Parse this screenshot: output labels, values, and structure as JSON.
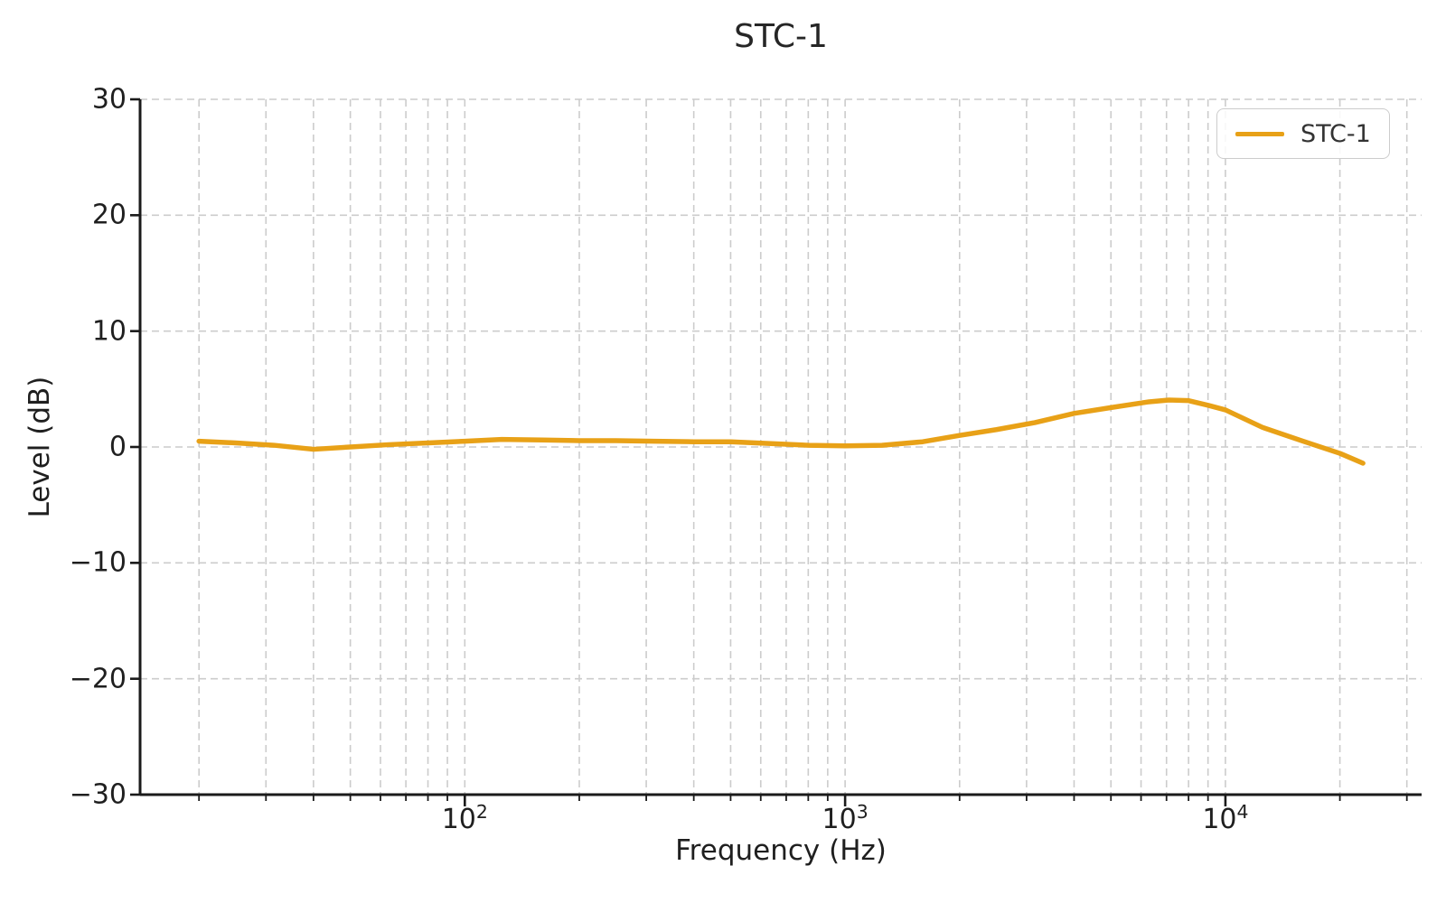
{
  "chart_data": {
    "type": "line",
    "title": "STC-1",
    "xlabel": "Frequency (Hz)",
    "ylabel": "Level (dB)",
    "x_scale": "log",
    "xlim": [
      14,
      32800
    ],
    "ylim": [
      -30,
      30
    ],
    "y_ticks": [
      30,
      20,
      10,
      0,
      -10,
      -20,
      -30
    ],
    "x_major_ticks": [
      {
        "value": 100,
        "base": "10",
        "exponent": "2"
      },
      {
        "value": 1000,
        "base": "10",
        "exponent": "3"
      },
      {
        "value": 10000,
        "base": "10",
        "exponent": "4"
      }
    ],
    "grid": {
      "show": true,
      "style": "dashed"
    },
    "legend": {
      "position": "upper right",
      "entries": [
        {
          "label": "STC-1",
          "color": "#E8A117"
        }
      ]
    },
    "series": [
      {
        "name": "STC-1",
        "color": "#E8A117",
        "points": [
          [
            20,
            0.5
          ],
          [
            25,
            0.35
          ],
          [
            31.5,
            0.15
          ],
          [
            40,
            -0.2
          ],
          [
            50,
            0.0
          ],
          [
            63,
            0.2
          ],
          [
            80,
            0.35
          ],
          [
            100,
            0.5
          ],
          [
            125,
            0.65
          ],
          [
            160,
            0.6
          ],
          [
            200,
            0.55
          ],
          [
            250,
            0.55
          ],
          [
            315,
            0.5
          ],
          [
            400,
            0.45
          ],
          [
            500,
            0.45
          ],
          [
            630,
            0.3
          ],
          [
            800,
            0.15
          ],
          [
            1000,
            0.1
          ],
          [
            1250,
            0.15
          ],
          [
            1600,
            0.45
          ],
          [
            2000,
            1.0
          ],
          [
            2500,
            1.5
          ],
          [
            3150,
            2.1
          ],
          [
            4000,
            2.9
          ],
          [
            5000,
            3.4
          ],
          [
            6300,
            3.9
          ],
          [
            7100,
            4.05
          ],
          [
            8000,
            4.0
          ],
          [
            9000,
            3.6
          ],
          [
            10000,
            3.2
          ],
          [
            12500,
            1.7
          ],
          [
            16000,
            0.5
          ],
          [
            20000,
            -0.55
          ],
          [
            23000,
            -1.4
          ]
        ]
      }
    ],
    "colors": {
      "axis": "#1a1a1a",
      "text": "#1f1f1f",
      "grid": "#cccccc",
      "background": "#ffffff"
    }
  }
}
